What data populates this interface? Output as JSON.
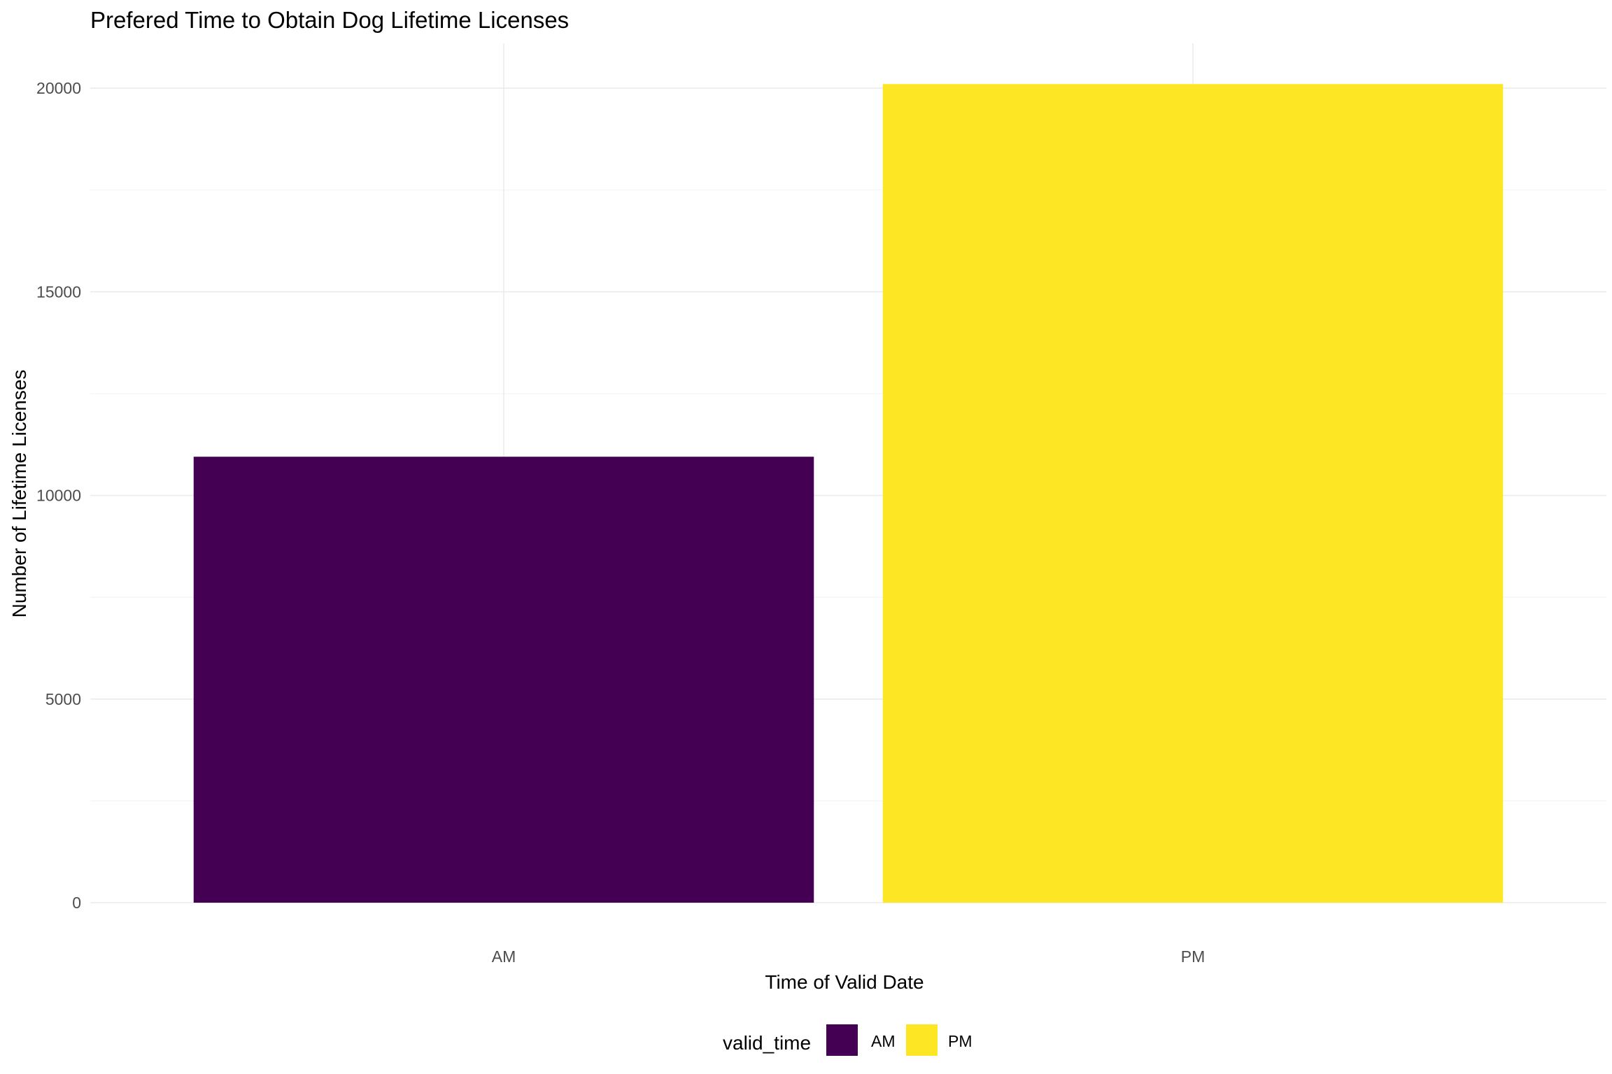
{
  "chart_data": {
    "type": "bar",
    "title": "Prefered Time to Obtain Dog Lifetime Licenses",
    "xlabel": "Time of Valid Date",
    "ylabel": "Number of Lifetime Licenses",
    "categories": [
      "AM",
      "PM"
    ],
    "values": [
      10950,
      20100
    ],
    "colors": [
      "#440154",
      "#FDE725"
    ],
    "ylim": [
      0,
      21100
    ],
    "yticks": [
      0,
      5000,
      10000,
      15000,
      20000
    ],
    "ytick_labels": [
      "0",
      "5000",
      "10000",
      "15000",
      "20000"
    ],
    "grid": true,
    "legend": {
      "title": "valid_time",
      "placement": "bottom",
      "entries": [
        {
          "label": "AM",
          "color": "#440154"
        },
        {
          "label": "PM",
          "color": "#FDE725"
        }
      ]
    }
  }
}
